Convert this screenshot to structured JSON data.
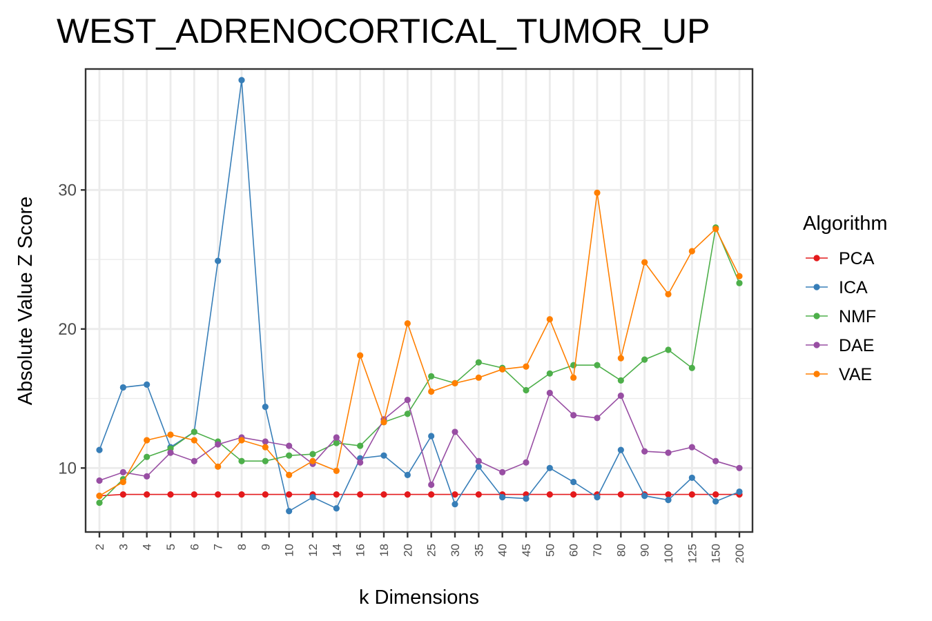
{
  "chart_data": {
    "type": "line",
    "title": "WEST_ADRENOCORTICAL_TUMOR_UP",
    "xlabel": "k Dimensions",
    "ylabel": "Absolute Value Z Score",
    "x_scale": "categorical",
    "categories": [
      "2",
      "3",
      "4",
      "5",
      "6",
      "7",
      "8",
      "9",
      "10",
      "12",
      "14",
      "16",
      "18",
      "20",
      "25",
      "30",
      "35",
      "40",
      "45",
      "50",
      "60",
      "70",
      "80",
      "90",
      "100",
      "125",
      "150",
      "200"
    ],
    "ylim": [
      5.4,
      38.7
    ],
    "yticks": [
      10,
      20,
      30
    ],
    "grid": true,
    "legend": {
      "title": "Algorithm",
      "position": "right"
    },
    "series": [
      {
        "name": "PCA",
        "color": "#E41A1C",
        "values": [
          8.0,
          8.1,
          8.1,
          8.1,
          8.1,
          8.1,
          8.1,
          8.1,
          8.1,
          8.1,
          8.1,
          8.1,
          8.1,
          8.1,
          8.1,
          8.1,
          8.1,
          8.1,
          8.1,
          8.1,
          8.1,
          8.1,
          8.1,
          8.1,
          8.1,
          8.1,
          8.1,
          8.1
        ]
      },
      {
        "name": "ICA",
        "color": "#377EB8",
        "values": [
          11.3,
          15.8,
          16.0,
          11.5,
          12.6,
          24.9,
          37.9,
          14.4,
          6.9,
          7.9,
          7.1,
          10.7,
          10.9,
          9.5,
          12.3,
          7.4,
          10.1,
          7.9,
          7.8,
          10.0,
          9.0,
          7.9,
          11.3,
          8.0,
          7.7,
          9.3,
          7.6,
          8.3
        ]
      },
      {
        "name": "NMF",
        "color": "#4DAF4A",
        "values": [
          7.5,
          9.2,
          10.8,
          11.4,
          12.6,
          11.9,
          10.5,
          10.5,
          10.9,
          11.0,
          11.8,
          11.6,
          13.3,
          13.9,
          16.6,
          16.1,
          17.6,
          17.2,
          15.6,
          16.8,
          17.4,
          17.4,
          16.3,
          17.8,
          18.5,
          17.2,
          27.3,
          23.3
        ]
      },
      {
        "name": "DAE",
        "color": "#984EA3",
        "values": [
          9.1,
          9.7,
          9.4,
          11.1,
          10.5,
          11.7,
          12.2,
          11.9,
          11.6,
          10.3,
          12.2,
          10.4,
          13.5,
          14.9,
          8.8,
          12.6,
          10.5,
          9.7,
          10.4,
          15.4,
          13.8,
          13.6,
          15.2,
          11.2,
          11.1,
          11.5,
          10.5,
          10.0
        ]
      },
      {
        "name": "VAE",
        "color": "#FF7F00",
        "values": [
          8.0,
          9.0,
          12.0,
          12.4,
          12.0,
          10.1,
          12.0,
          11.5,
          9.5,
          10.5,
          9.8,
          18.1,
          13.3,
          20.4,
          15.5,
          16.1,
          16.5,
          17.1,
          17.3,
          20.7,
          16.5,
          29.8,
          17.9,
          24.8,
          22.5,
          25.6,
          27.2,
          23.8
        ]
      }
    ]
  }
}
